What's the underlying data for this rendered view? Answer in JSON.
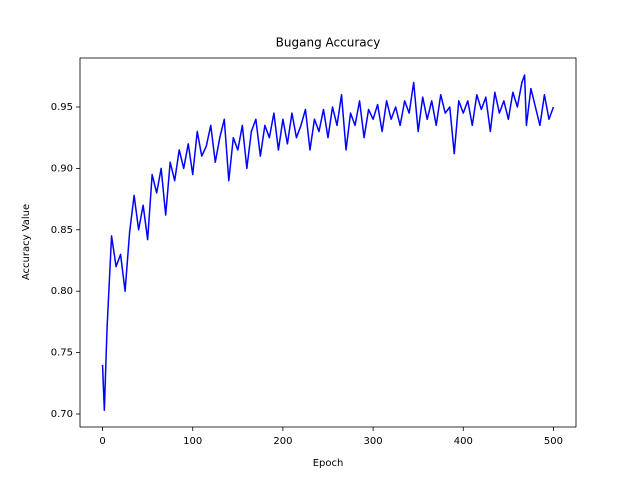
{
  "chart_data": {
    "type": "line",
    "title": "Bugang Accuracy",
    "xlabel": "Epoch",
    "ylabel": "Accuracy Value",
    "color": "#0000ff",
    "x": [
      0,
      2,
      5,
      10,
      15,
      20,
      25,
      30,
      35,
      40,
      45,
      50,
      55,
      60,
      65,
      70,
      75,
      80,
      85,
      90,
      95,
      100,
      105,
      110,
      115,
      120,
      125,
      130,
      135,
      140,
      145,
      150,
      155,
      160,
      165,
      170,
      175,
      180,
      185,
      190,
      195,
      200,
      205,
      210,
      215,
      220,
      225,
      230,
      235,
      240,
      245,
      250,
      255,
      260,
      265,
      270,
      275,
      280,
      285,
      290,
      295,
      300,
      305,
      310,
      315,
      320,
      325,
      330,
      335,
      340,
      345,
      350,
      355,
      360,
      365,
      370,
      375,
      380,
      385,
      390,
      395,
      400,
      405,
      410,
      415,
      420,
      425,
      430,
      435,
      440,
      445,
      450,
      455,
      460,
      465,
      468,
      470,
      475,
      480,
      485,
      490,
      495,
      500
    ],
    "values": [
      0.74,
      0.703,
      0.77,
      0.845,
      0.82,
      0.83,
      0.8,
      0.848,
      0.878,
      0.85,
      0.87,
      0.842,
      0.895,
      0.88,
      0.9,
      0.862,
      0.905,
      0.89,
      0.915,
      0.9,
      0.92,
      0.895,
      0.93,
      0.91,
      0.918,
      0.935,
      0.905,
      0.925,
      0.94,
      0.89,
      0.925,
      0.915,
      0.935,
      0.9,
      0.93,
      0.94,
      0.91,
      0.935,
      0.925,
      0.945,
      0.915,
      0.94,
      0.92,
      0.945,
      0.925,
      0.935,
      0.948,
      0.915,
      0.94,
      0.93,
      0.948,
      0.925,
      0.95,
      0.935,
      0.96,
      0.915,
      0.945,
      0.935,
      0.955,
      0.925,
      0.948,
      0.94,
      0.952,
      0.93,
      0.955,
      0.94,
      0.95,
      0.935,
      0.955,
      0.945,
      0.97,
      0.93,
      0.958,
      0.94,
      0.955,
      0.935,
      0.96,
      0.945,
      0.95,
      0.912,
      0.955,
      0.945,
      0.955,
      0.935,
      0.96,
      0.948,
      0.958,
      0.93,
      0.962,
      0.945,
      0.955,
      0.94,
      0.962,
      0.95,
      0.97,
      0.976,
      0.935,
      0.965,
      0.95,
      0.935,
      0.96,
      0.94,
      0.95
    ],
    "xlim": [
      -25,
      525
    ],
    "xticks": [
      0,
      100,
      200,
      300,
      400,
      500
    ],
    "ylim": [
      0.6894,
      0.9899
    ],
    "yticks": [
      {
        "value": 0.7,
        "label": "0.70"
      },
      0.75,
      {
        "value": 0.8,
        "label": "0.80"
      },
      0.85,
      {
        "value": 0.9,
        "label": "0.90"
      },
      0.95
    ]
  }
}
